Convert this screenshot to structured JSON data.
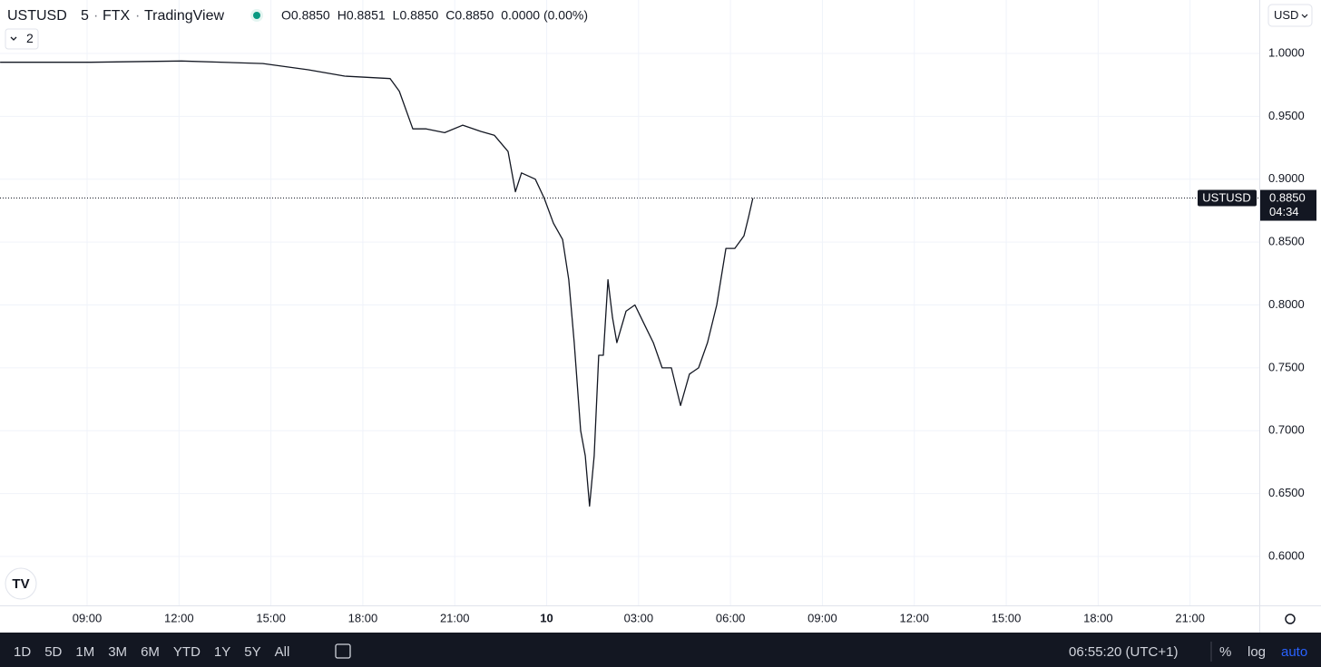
{
  "chart_data": {
    "type": "line",
    "symbol": "USTUSD",
    "interval": "5",
    "exchange": "FTX",
    "source": "TradingView",
    "ohlc": [
      {
        "key": "O",
        "value": "0.8850"
      },
      {
        "key": "H",
        "value": "0.8851"
      },
      {
        "key": "L",
        "value": "0.8850"
      },
      {
        "key": "C",
        "value": "0.8850"
      }
    ],
    "change": "0.0000 (0.00%)",
    "indicators_count": "2",
    "currency": "USD",
    "color": "#131722",
    "grid": true,
    "x": [
      6.16,
      9.12,
      12.08,
      14.74,
      16.22,
      17.41,
      18.89,
      19.19,
      19.63,
      20.07,
      20.67,
      21.26,
      21.85,
      22.29,
      22.74,
      22.98,
      23.18,
      23.63,
      23.92,
      24.22,
      24.52,
      24.72,
      24.9,
      25.11,
      25.26,
      25.4,
      25.55,
      25.7,
      25.85,
      26.0,
      26.15,
      26.29,
      26.59,
      26.88,
      27.18,
      27.48,
      27.77,
      28.07,
      28.37,
      28.66,
      28.96,
      29.25,
      29.55,
      29.85,
      30.14,
      30.44,
      30.59,
      30.73
    ],
    "values": [
      0.993,
      0.993,
      0.994,
      0.992,
      0.987,
      0.982,
      0.98,
      0.97,
      0.94,
      0.94,
      0.937,
      0.943,
      0.938,
      0.935,
      0.922,
      0.89,
      0.905,
      0.9,
      0.885,
      0.865,
      0.852,
      0.82,
      0.77,
      0.7,
      0.68,
      0.64,
      0.68,
      0.76,
      0.76,
      0.82,
      0.79,
      0.77,
      0.795,
      0.8,
      0.785,
      0.77,
      0.75,
      0.75,
      0.72,
      0.745,
      0.75,
      0.77,
      0.8,
      0.845,
      0.845,
      0.855,
      0.87,
      0.885
    ],
    "xlim": [
      6.157,
      47.26
    ],
    "xticks": [
      {
        "value": 9,
        "label": "09:00"
      },
      {
        "value": 12,
        "label": "12:00"
      },
      {
        "value": 15,
        "label": "15:00"
      },
      {
        "value": 18,
        "label": "18:00"
      },
      {
        "value": 21,
        "label": "21:00"
      },
      {
        "value": 24,
        "label": "10"
      },
      {
        "value": 27,
        "label": "03:00"
      },
      {
        "value": 30,
        "label": "06:00"
      },
      {
        "value": 33,
        "label": "09:00"
      },
      {
        "value": 36,
        "label": "12:00"
      },
      {
        "value": 39,
        "label": "15:00"
      },
      {
        "value": 42,
        "label": "18:00"
      },
      {
        "value": 45,
        "label": "21:00"
      }
    ],
    "ylim": [
      0.5611,
      1.0425
    ],
    "yticks": [
      {
        "value": 1,
        "label": "1.0000"
      },
      {
        "value": 0.95,
        "label": "0.9500"
      },
      {
        "value": 0.9,
        "label": "0.9000"
      },
      {
        "value": 0.85,
        "label": "0.8500"
      },
      {
        "value": 0.8,
        "label": "0.8000"
      },
      {
        "value": 0.75,
        "label": "0.7500"
      },
      {
        "value": 0.7,
        "label": "0.7000"
      },
      {
        "value": 0.65,
        "label": "0.6500"
      },
      {
        "value": 0.6,
        "label": "0.6000"
      }
    ],
    "last_price": 0.885,
    "last_price_label": "0.8850",
    "countdown": "04:34"
  },
  "toolbar": {
    "ranges": [
      "1D",
      "5D",
      "1M",
      "3M",
      "6M",
      "YTD",
      "1Y",
      "5Y",
      "All"
    ],
    "clock": "06:55:20 (UTC+1)",
    "percent": "%",
    "log": "log",
    "auto": "auto"
  }
}
